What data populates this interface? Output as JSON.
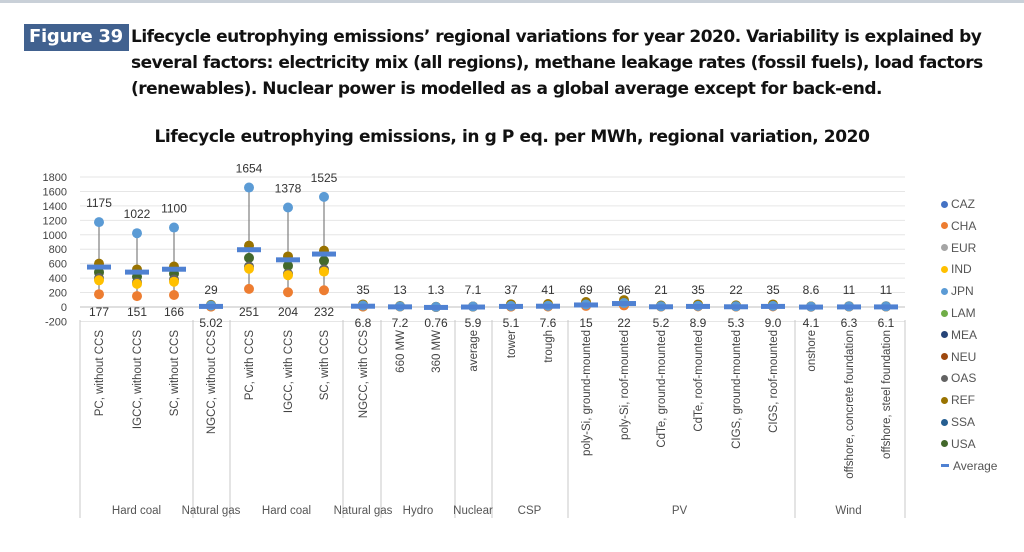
{
  "figure": {
    "badge": "Figure 39",
    "caption_lines": [
      "Lifecycle eutrophying emissions’ regional variations for year 2020. Variability is explained by",
      "several factors: electricity mix (all regions), methane leakage rates (fossil fuels), load factors",
      "(renewables). Nuclear power is modelled as a global average except for back-end."
    ]
  },
  "chart_data": {
    "type": "scatter",
    "title": "Lifecycle eutrophying emissions, in g P eq. per MWh, regional variation, 2020",
    "xlabel": "",
    "ylabel": "",
    "ylim": [
      -200,
      1800
    ],
    "yticks": [
      1800,
      1600,
      1400,
      1200,
      1000,
      800,
      600,
      400,
      200,
      0,
      -200
    ],
    "grid": true,
    "legend_position": "right",
    "categories": [
      "PC, without CCS",
      "IGCC, without CCS",
      "SC, without CCS",
      "NGCC, without CCS",
      "PC, with CCS",
      "IGCC, with CCS",
      "SC, with CCS",
      "NGCC, with CCS",
      "660 MW",
      "360 MW",
      "average",
      "tower",
      "trough",
      "poly-Si, ground-mounted",
      "poly-Si, roof-mounted",
      "CdTe, ground-mounted",
      "CdTe, roof-mounted",
      "CIGS, ground-mounted",
      "CIGS, roof-mounted",
      "onshore",
      "offshore, concrete foundation",
      "offshore, steel foundation"
    ],
    "groups": [
      {
        "label": "Hard coal",
        "span": [
          0,
          2
        ]
      },
      {
        "label": "Natural gas",
        "span": [
          3,
          3
        ]
      },
      {
        "label": "Hard coal",
        "span": [
          4,
          6
        ]
      },
      {
        "label": "Natural gas",
        "span": [
          7,
          7
        ]
      },
      {
        "label": "Hydro",
        "span": [
          8,
          9
        ]
      },
      {
        "label": "Nuclear",
        "span": [
          10,
          10
        ]
      },
      {
        "label": "CSP",
        "span": [
          11,
          12
        ]
      },
      {
        "label": "PV",
        "span": [
          13,
          18
        ]
      },
      {
        "label": "Wind",
        "span": [
          19,
          21
        ]
      }
    ],
    "max_labels": [
      "1175",
      "1022",
      "1100",
      "29",
      "1654",
      "1378",
      "1525",
      "35",
      "13",
      "1.3",
      "7.1",
      "37",
      "41",
      "69",
      "96",
      "21",
      "35",
      "22",
      "35",
      "8.6",
      "11",
      "11"
    ],
    "min_labels": [
      "177",
      "151",
      "166",
      "5.02",
      "251",
      "204",
      "232",
      "6.8",
      "7.2",
      "0.76",
      "5.9",
      "5.1",
      "7.6",
      "15",
      "22",
      "5.2",
      "8.9",
      "5.3",
      "9.0",
      "4.1",
      "6.3",
      "6.1"
    ],
    "max": [
      1175,
      1022,
      1100,
      29,
      1654,
      1378,
      1525,
      35,
      13,
      1.3,
      7.1,
      37,
      41,
      69,
      96,
      21,
      35,
      22,
      35,
      8.6,
      11,
      11
    ],
    "min": [
      177,
      151,
      166,
      5.02,
      251,
      204,
      232,
      6.8,
      7.2,
      0.76,
      5.9,
      5.1,
      7.6,
      15,
      22,
      5.2,
      8.9,
      5.3,
      9.0,
      4.1,
      6.3,
      6.1
    ],
    "average": [
      560,
      490,
      530,
      15,
      800,
      660,
      740,
      18,
      9,
      1,
      6.5,
      15,
      18,
      35,
      55,
      10,
      15,
      10,
      15,
      6,
      8,
      8
    ],
    "series": [
      {
        "name": "CAZ",
        "color": "#4472c4"
      },
      {
        "name": "CHA",
        "color": "#ed7d31"
      },
      {
        "name": "EUR",
        "color": "#a5a5a5"
      },
      {
        "name": "IND",
        "color": "#ffc000"
      },
      {
        "name": "JPN",
        "color": "#5b9bd5"
      },
      {
        "name": "LAM",
        "color": "#70ad47"
      },
      {
        "name": "MEA",
        "color": "#264478"
      },
      {
        "name": "NEU",
        "color": "#9e480e"
      },
      {
        "name": "OAS",
        "color": "#636363"
      },
      {
        "name": "REF",
        "color": "#997300"
      },
      {
        "name": "SSA",
        "color": "#255e91"
      },
      {
        "name": "USA",
        "color": "#43682b"
      }
    ],
    "visible_points": {
      "REF": [
        600,
        520,
        560,
        29,
        850,
        700,
        780,
        35,
        13,
        1.3,
        7.1,
        37,
        41,
        69,
        96,
        21,
        35,
        22,
        35,
        8.6,
        11,
        11
      ],
      "USA": [
        480,
        420,
        460,
        10,
        680,
        570,
        640,
        10,
        10,
        1,
        6,
        10,
        12,
        30,
        40,
        10,
        15,
        10,
        15,
        6,
        8,
        8
      ],
      "OAS": [
        400,
        340,
        380,
        8,
        560,
        460,
        520,
        8,
        8,
        1,
        6,
        8,
        10,
        25,
        35,
        8,
        12,
        8,
        12,
        5,
        7,
        7
      ],
      "IND": [
        370,
        320,
        350,
        7,
        530,
        440,
        490,
        7,
        8,
        1,
        6,
        7,
        9,
        20,
        30,
        7,
        11,
        7,
        11,
        5,
        7,
        7
      ],
      "CHA": [
        177,
        151,
        166,
        5.02,
        251,
        204,
        232,
        6.8,
        7.2,
        0.76,
        5.9,
        5.1,
        7.6,
        15,
        22,
        5.2,
        8.9,
        5.3,
        9.0,
        4.1,
        6.3,
        6.1
      ],
      "JPN": [
        1175,
        1022,
        1100,
        20,
        1654,
        1378,
        1525,
        20,
        9,
        1,
        6.5,
        15,
        18,
        35,
        55,
        10,
        15,
        10,
        15,
        6,
        8,
        8
      ]
    },
    "average_label": "Average",
    "average_color": "#4f81d2"
  }
}
